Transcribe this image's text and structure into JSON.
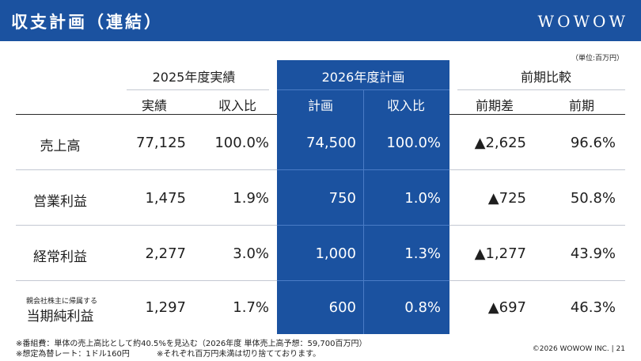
{
  "header": {
    "title": "収支計画（連結）",
    "logo": "WOWOW"
  },
  "unit_note": "（単位:百万円）",
  "groups": {
    "actual": "2025年度実績",
    "plan": "2026年度計画",
    "compare": "前期比較"
  },
  "subheaders": {
    "actual_value": "実績",
    "actual_ratio": "収入比",
    "plan_value": "計画",
    "plan_ratio": "収入比",
    "diff": "前期差",
    "prev": "前期"
  },
  "rows": [
    {
      "label": "売上高",
      "label_small": "",
      "actual": "77,125",
      "actual_ratio": "100.0%",
      "plan": "74,500",
      "plan_ratio": "100.0%",
      "diff": "▲2,625",
      "prev": "96.6%"
    },
    {
      "label": "営業利益",
      "label_small": "",
      "actual": "1,475",
      "actual_ratio": "1.9%",
      "plan": "750",
      "plan_ratio": "1.0%",
      "diff": "▲725",
      "prev": "50.8%"
    },
    {
      "label": "経常利益",
      "label_small": "",
      "actual": "2,277",
      "actual_ratio": "3.0%",
      "plan": "1,000",
      "plan_ratio": "1.3%",
      "diff": "▲1,277",
      "prev": "43.9%"
    },
    {
      "label": "当期純利益",
      "label_small": "親会社株主に帰属する",
      "actual": "1,297",
      "actual_ratio": "1.7%",
      "plan": "600",
      "plan_ratio": "0.8%",
      "diff": "▲697",
      "prev": "46.3%"
    }
  ],
  "footnotes": {
    "line1": "※番組費：単体の売上高比として約40.5%を見込む（2026年度 単体売上高予想：59,700百万円）",
    "line2": "※想定為替レート：1ドル160円",
    "line3": "※それぞれ百万円未満は切り捨てております。"
  },
  "copyright": "©2026 WOWOW INC.  | 21"
}
